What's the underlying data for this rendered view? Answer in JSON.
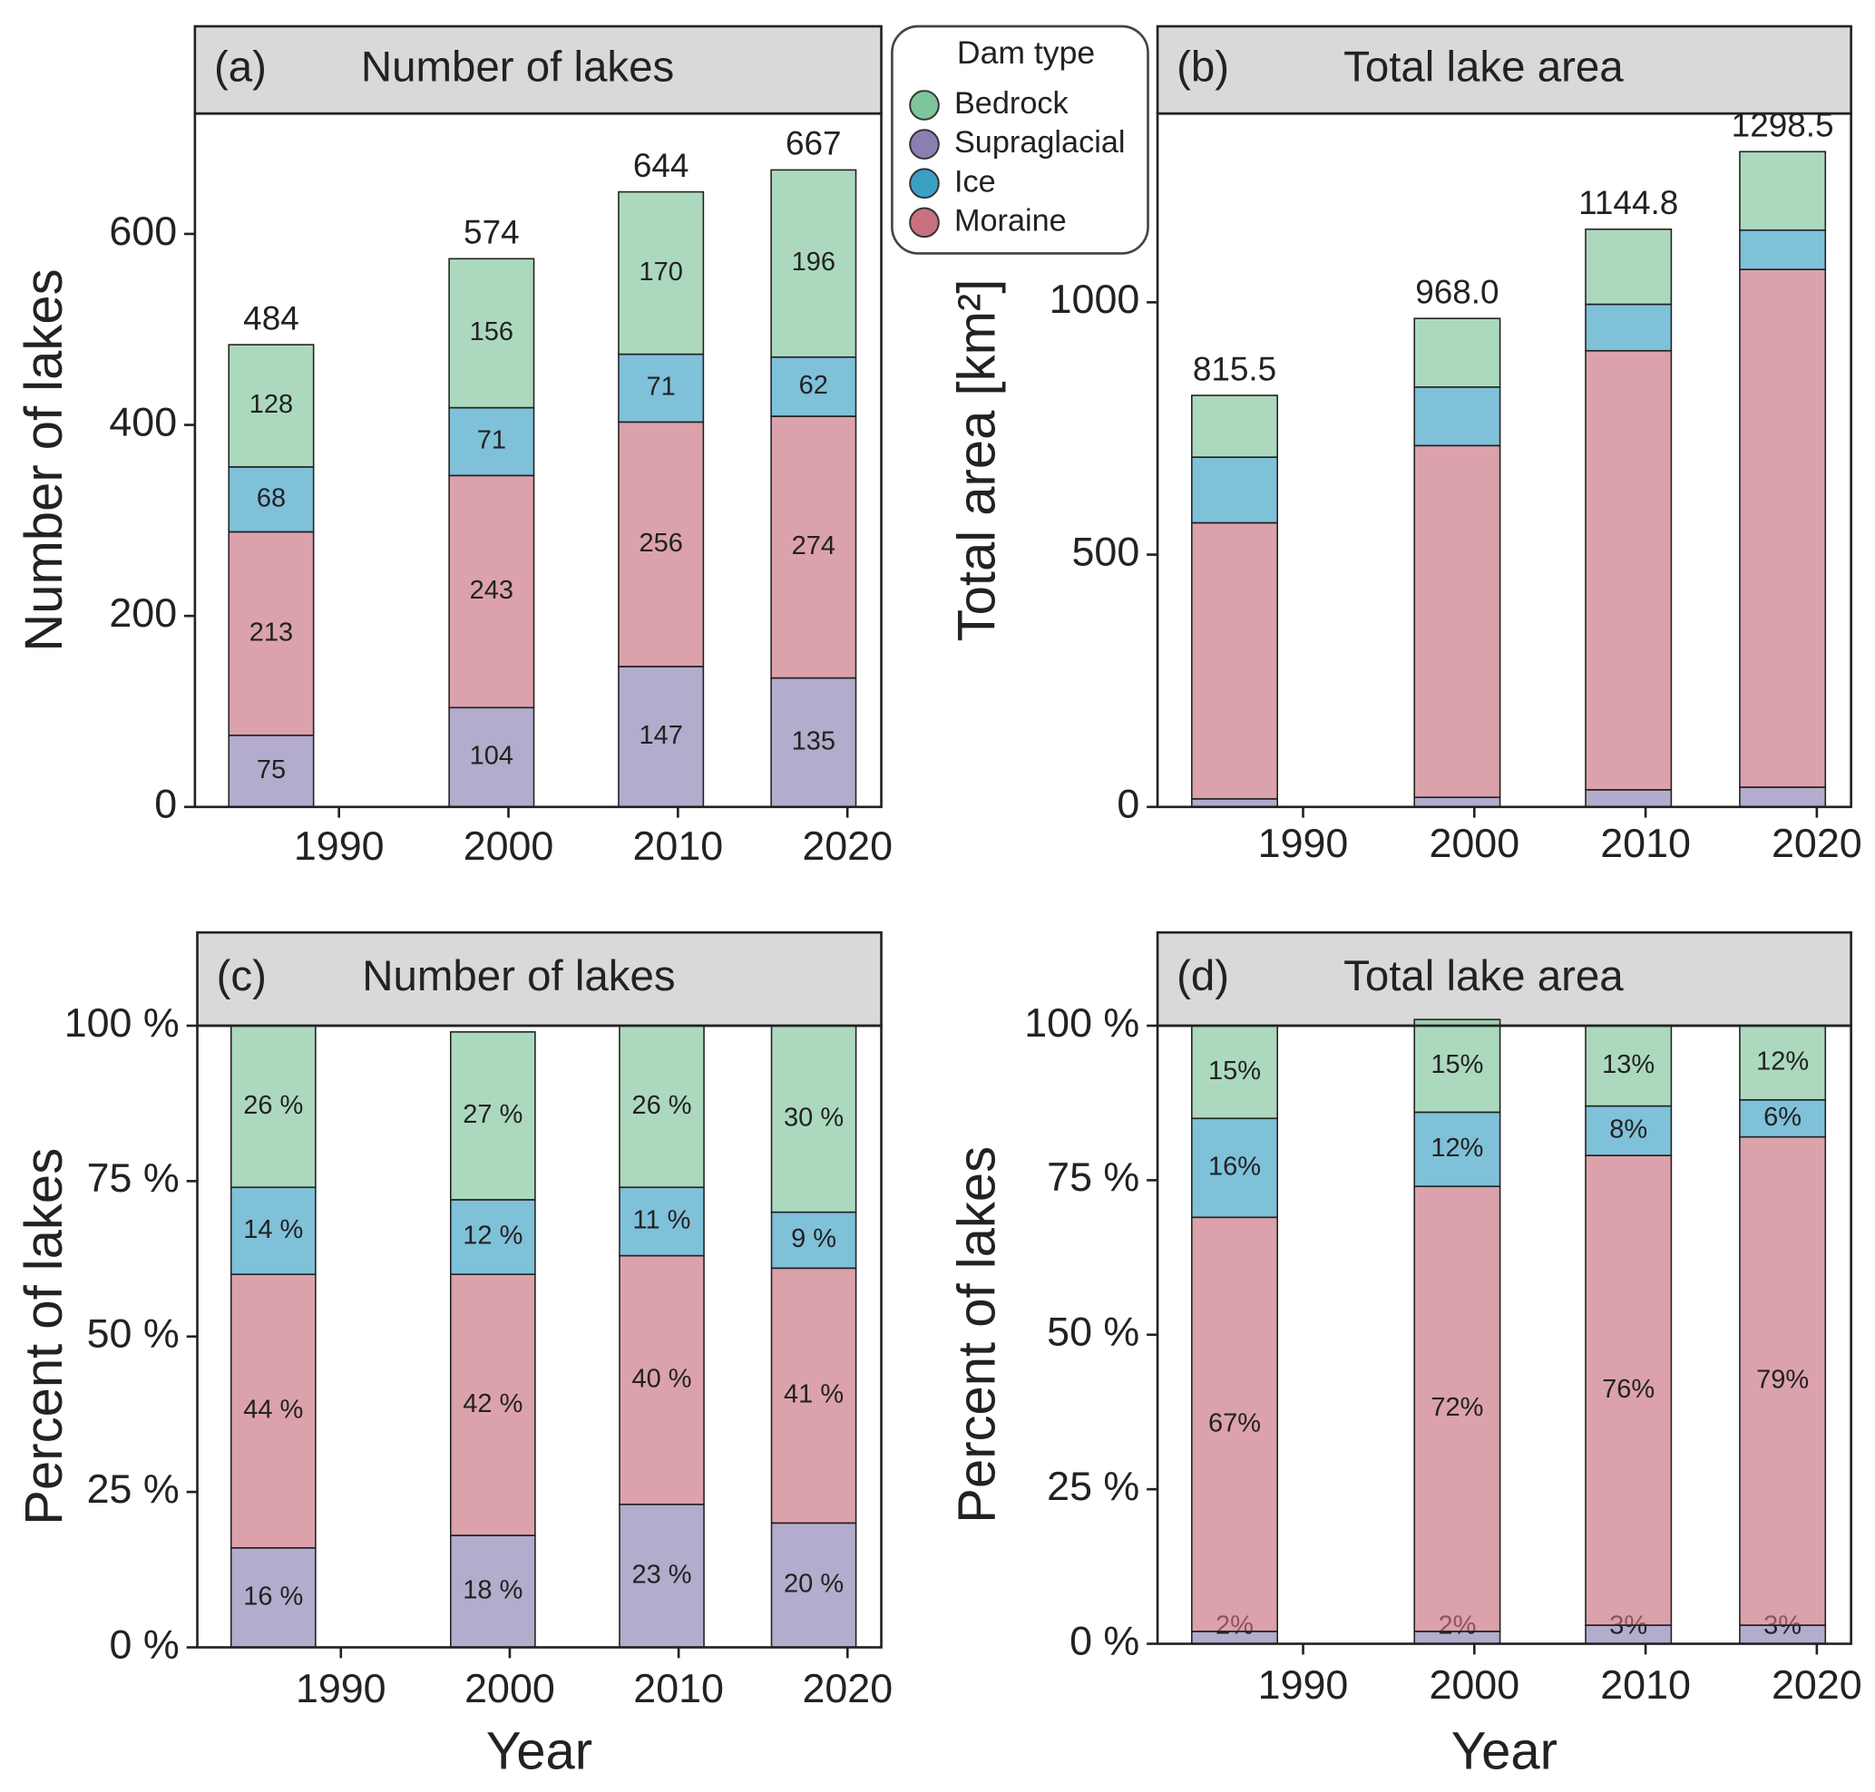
{
  "chart_data": [
    {
      "type": "bar",
      "stacked": true,
      "tag": "(a)",
      "title": "Number of lakes",
      "ylabel": "Number of lakes",
      "legend_title": "Dam type",
      "legend": "top-center",
      "grid": false,
      "bar_opacity": 0.65,
      "segment_labels": true,
      "x": [
        1986,
        1999,
        2009,
        2018
      ],
      "xlim": [
        1981.5,
        2022
      ],
      "xticks": [
        1990,
        2000,
        2010,
        2020
      ],
      "ylim": [
        0,
        726
      ],
      "yticks": [
        0,
        200,
        400,
        600
      ],
      "stack_order": [
        "Supraglacial",
        "Moraine",
        "Ice",
        "Bedrock"
      ],
      "series": [
        {
          "name": "Bedrock",
          "color": "#7fc59b",
          "values": [
            128,
            156,
            170,
            196
          ]
        },
        {
          "name": "Supraglacial",
          "color": "#8a7fb0",
          "values": [
            75,
            104,
            147,
            135
          ]
        },
        {
          "name": "Ice",
          "color": "#3aa0c4",
          "values": [
            68,
            71,
            71,
            62
          ]
        },
        {
          "name": "Moraine",
          "color": "#c9707f",
          "values": [
            213,
            243,
            256,
            274
          ]
        }
      ],
      "totals": [
        484,
        574,
        644,
        667
      ]
    },
    {
      "type": "bar",
      "stacked": true,
      "tag": "(b)",
      "title": "Total lake area",
      "ylabel": "Total area [km²]",
      "grid": false,
      "bar_opacity": 0.65,
      "segment_labels": false,
      "x": [
        1986,
        1999,
        2009,
        2018
      ],
      "xlim": [
        1981.5,
        2022
      ],
      "xticks": [
        1990,
        2000,
        2010,
        2020
      ],
      "ylim": [
        0,
        1374
      ],
      "yticks": [
        0,
        500,
        1000
      ],
      "stack_order": [
        "Supraglacial",
        "Moraine",
        "Ice",
        "Bedrock"
      ],
      "series": [
        {
          "name": "Bedrock",
          "color": "#7fc59b",
          "values": [
            122.5,
            136,
            148.8,
            155.5
          ]
        },
        {
          "name": "Supraglacial",
          "color": "#8a7fb0",
          "values": [
            16,
            19,
            34,
            39
          ]
        },
        {
          "name": "Ice",
          "color": "#3aa0c4",
          "values": [
            130,
            116,
            92,
            78
          ]
        },
        {
          "name": "Moraine",
          "color": "#c9707f",
          "values": [
            547,
            697,
            870,
            1026
          ]
        }
      ],
      "totals": [
        815.5,
        968,
        1144.8,
        1298.5
      ],
      "total_labels": [
        "815.5",
        "968.0",
        "1144.8",
        "1298.5"
      ]
    },
    {
      "type": "bar",
      "stacked": true,
      "tag": "(c)",
      "title": "Number of lakes",
      "ylabel": "Percent of lakes",
      "xlabel": "Year",
      "grid": false,
      "bar_opacity": 0.65,
      "segment_labels": true,
      "x": [
        1986,
        1999,
        2009,
        2018
      ],
      "xlim": [
        1981.5,
        2022
      ],
      "xticks": [
        1990,
        2000,
        2010,
        2020
      ],
      "ylim": [
        0,
        100
      ],
      "yticks": [
        {
          "value": 0,
          "label": "0 %"
        },
        {
          "value": 25,
          "label": "25 %"
        },
        {
          "value": 50,
          "label": "50 %"
        },
        {
          "value": 75,
          "label": "75 %"
        },
        {
          "value": 100,
          "label": "100 %"
        }
      ],
      "stack_order": [
        "Supraglacial",
        "Moraine",
        "Ice",
        "Bedrock"
      ],
      "series": [
        {
          "name": "Bedrock",
          "color": "#7fc59b",
          "values": [
            26,
            27,
            26,
            30
          ],
          "value_labels": [
            "26 %",
            "27 %",
            "26 %",
            "30 %"
          ]
        },
        {
          "name": "Supraglacial",
          "color": "#8a7fb0",
          "values": [
            16,
            18,
            23,
            20
          ],
          "value_labels": [
            "16 %",
            "18 %",
            "23 %",
            "20 %"
          ]
        },
        {
          "name": "Ice",
          "color": "#3aa0c4",
          "values": [
            14,
            12,
            11,
            9
          ],
          "value_labels": [
            "14 %",
            "12 %",
            "11 %",
            "9 %"
          ]
        },
        {
          "name": "Moraine",
          "color": "#c9707f",
          "values": [
            44,
            42,
            40,
            41
          ],
          "value_labels": [
            "44 %",
            "42 %",
            "40 %",
            "41 %"
          ]
        }
      ]
    },
    {
      "type": "bar",
      "stacked": true,
      "tag": "(d)",
      "title": "Total lake area",
      "ylabel": "Percent of lakes",
      "xlabel": "Year",
      "grid": false,
      "bar_opacity": 0.65,
      "segment_labels": true,
      "x": [
        1986,
        1999,
        2009,
        2018
      ],
      "xlim": [
        1981.5,
        2022
      ],
      "xticks": [
        1990,
        2000,
        2010,
        2020
      ],
      "ylim": [
        0,
        100
      ],
      "yticks": [
        {
          "value": 0,
          "label": "0 %"
        },
        {
          "value": 25,
          "label": "25 %"
        },
        {
          "value": 50,
          "label": "50 %"
        },
        {
          "value": 75,
          "label": "75 %"
        },
        {
          "value": 100,
          "label": "100 %"
        }
      ],
      "stack_order": [
        "Supraglacial",
        "Moraine",
        "Ice",
        "Bedrock"
      ],
      "series": [
        {
          "name": "Bedrock",
          "color": "#7fc59b",
          "values": [
            15,
            15,
            13,
            12
          ],
          "value_labels": [
            "15%",
            "15%",
            "13%",
            "12%"
          ]
        },
        {
          "name": "Supraglacial",
          "color": "#8a7fb0",
          "values": [
            2,
            2,
            3,
            3
          ],
          "value_labels": [
            "2%",
            "2%",
            "3%",
            "3%"
          ]
        },
        {
          "name": "Ice",
          "color": "#3aa0c4",
          "values": [
            16,
            12,
            8,
            6
          ],
          "value_labels": [
            "16%",
            "12%",
            "8%",
            "6%"
          ]
        },
        {
          "name": "Moraine",
          "color": "#c9707f",
          "values": [
            67,
            72,
            76,
            79
          ],
          "value_labels": [
            "67%",
            "72%",
            "76%",
            "79%"
          ]
        }
      ]
    }
  ]
}
